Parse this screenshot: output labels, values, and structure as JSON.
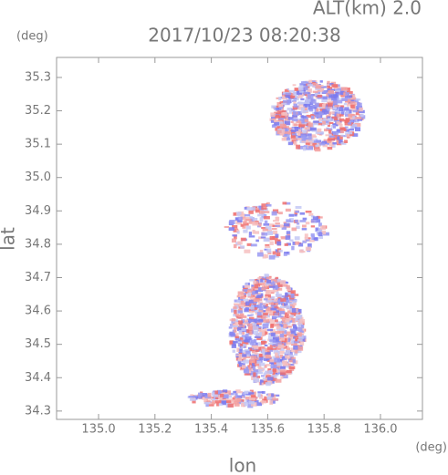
{
  "chart_data": {
    "type": "map-scatter",
    "title": "2017/10/23 08:20:38",
    "subtitle": "ALT(km) 2.0",
    "xlabel": "lon",
    "ylabel": "lat",
    "xunit": "(deg)",
    "yunit": "(deg)",
    "xlim": [
      134.851,
      136.149
    ],
    "ylim": [
      34.275,
      35.36
    ],
    "xticks": [
      {
        "value": 135,
        "label": "135.0"
      },
      135.2,
      135.4,
      135.6,
      135.8,
      {
        "value": 136,
        "label": "136.0"
      }
    ],
    "yticks": [
      34.3,
      34.4,
      34.5,
      34.6,
      34.7,
      34.8,
      34.9,
      {
        "value": 35,
        "label": "35.0"
      },
      35.1,
      35.2,
      35.3
    ]
  }
}
